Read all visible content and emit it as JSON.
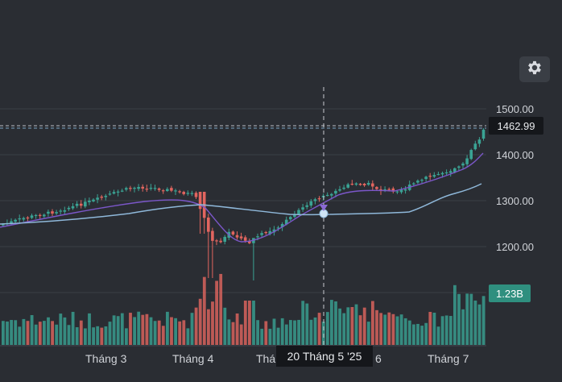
{
  "chart_data": {
    "type": "candlestick",
    "y_ticks": [
      "1500.00",
      "1400.00",
      "1300.00",
      "1200.00"
    ],
    "x_ticks": [
      "Tháng 3",
      "Tháng 4",
      "Tháng",
      "6",
      "Tháng 7"
    ],
    "last_price_label": "1462.99",
    "volume_label": "1.23B",
    "crosshair_date": "20 Tháng 5 '25",
    "colors": {
      "up": "#3aa394",
      "down": "#e2655f",
      "ma_fast": "#7b57c9",
      "ma_slow": "#8fb8da",
      "background": "#2a2d33"
    }
  },
  "toolbar": {
    "settings_icon": "gear-icon"
  }
}
